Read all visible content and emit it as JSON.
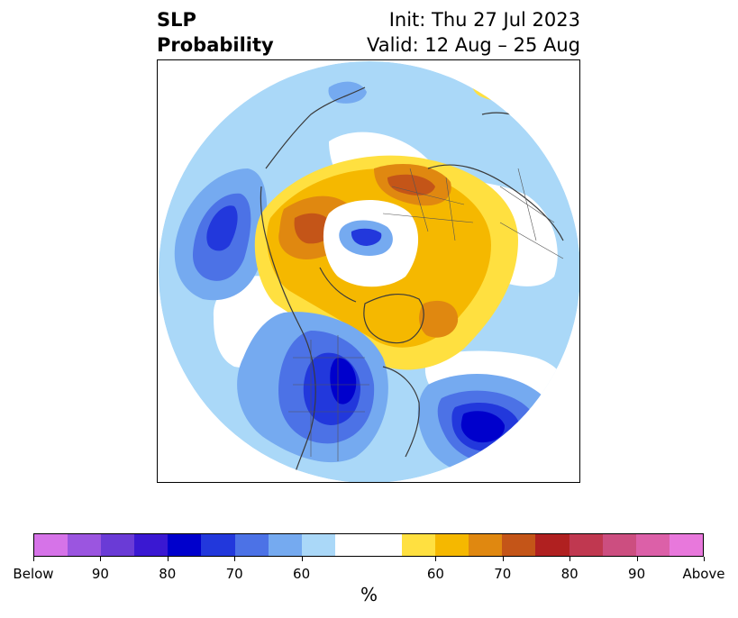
{
  "header": {
    "title_line1": "SLP",
    "title_line2": "Probability",
    "init_label": "Init: Thu 27 Jul 2023",
    "valid_label": "Valid: 12 Aug – 25 Aug"
  },
  "colorbar": {
    "colors": [
      "#d673e8",
      "#9b55e0",
      "#6a3bd6",
      "#3a18d2",
      "#0000cc",
      "#2238dc",
      "#4c72e6",
      "#75aaf0",
      "#aad8f8",
      "#ffffff",
      "#ffffff",
      "#ffe040",
      "#f5b800",
      "#e08810",
      "#c45518",
      "#b02020",
      "#c03850",
      "#cc4e80",
      "#dc60a8",
      "#e878dc"
    ],
    "tick_labels": [
      "Below",
      "90",
      "80",
      "70",
      "60",
      "60",
      "70",
      "80",
      "90",
      "Above"
    ],
    "unit": "%"
  },
  "map": {
    "projection": "north-polar-stereographic",
    "field": "SLP probability",
    "boundaries": "country, state and province borders"
  }
}
